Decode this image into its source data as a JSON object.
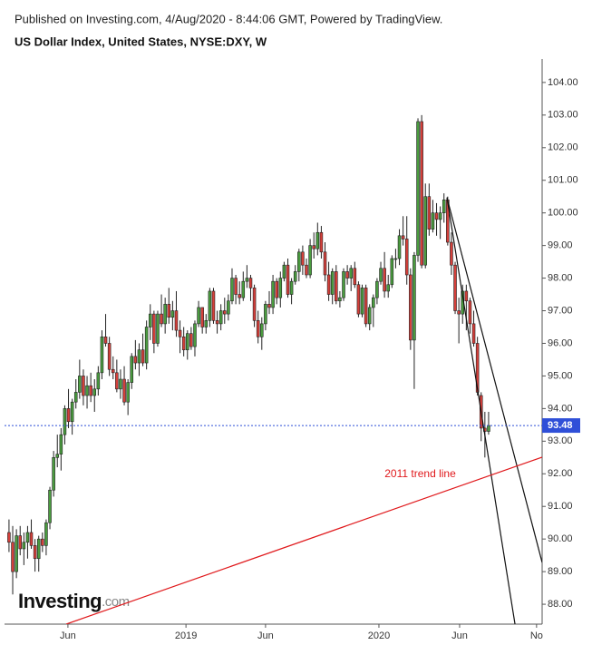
{
  "chart_data": {
    "type": "candlestick",
    "header": "Published on Investing.com, 4/Aug/2020 - 8:44:06 GMT, Powered by TradingView.",
    "title": "US Dollar Index, United States, NYSE:DXY, W",
    "logo": "Investing",
    "logo_suffix": ".com",
    "up_color": "#4a9c3f",
    "down_color": "#d43f3a",
    "ylim": [
      87.39,
      104.72
    ],
    "yticks": [
      {
        "value": 88,
        "label": "88.00"
      },
      {
        "value": 89,
        "label": "89.00"
      },
      {
        "value": 90,
        "label": "90.00"
      },
      {
        "value": 91,
        "label": "91.00"
      },
      {
        "value": 92,
        "label": "92.00"
      },
      {
        "value": 93,
        "label": "93.00"
      },
      {
        "value": 94,
        "label": "94.00"
      },
      {
        "value": 95,
        "label": "95.00"
      },
      {
        "value": 96,
        "label": "96.00"
      },
      {
        "value": 97,
        "label": "97.00"
      },
      {
        "value": 98,
        "label": "98.00"
      },
      {
        "value": 99,
        "label": "99.00"
      },
      {
        "value": 100,
        "label": "100.00"
      },
      {
        "value": 101,
        "label": "101.00"
      },
      {
        "value": 102,
        "label": "102.00"
      },
      {
        "value": 103,
        "label": "103.00"
      },
      {
        "value": 104,
        "label": "104.00"
      }
    ],
    "xlim": [
      -1.2,
      143.4
    ],
    "xticks": [
      {
        "value": 15.85,
        "label": "Jun"
      },
      {
        "value": 47.6,
        "label": "2019"
      },
      {
        "value": 69.0,
        "label": "Jun"
      },
      {
        "value": 99.5,
        "label": "2020"
      },
      {
        "value": 121.2,
        "label": "Jun"
      },
      {
        "value": 141.9,
        "label": "No"
      }
    ],
    "last_price_color": "#2f4fd8",
    "candles": [
      [
        90.2,
        90.6,
        89.6,
        89.9
      ],
      [
        89.9,
        90.4,
        88.3,
        89.0
      ],
      [
        89.0,
        90.3,
        88.8,
        90.1
      ],
      [
        90.1,
        90.4,
        89.5,
        89.7
      ],
      [
        89.7,
        90.2,
        89.2,
        89.9
      ],
      [
        89.9,
        90.4,
        89.4,
        90.2
      ],
      [
        90.2,
        90.6,
        89.7,
        89.8
      ],
      [
        89.8,
        90.0,
        89.0,
        89.4
      ],
      [
        89.4,
        90.1,
        89.0,
        90.0
      ],
      [
        90.0,
        90.2,
        89.6,
        89.8
      ],
      [
        89.8,
        90.6,
        89.5,
        90.5
      ],
      [
        90.5,
        91.6,
        90.3,
        91.5
      ],
      [
        91.5,
        92.7,
        91.3,
        92.5
      ],
      [
        92.5,
        93.2,
        92.2,
        92.6
      ],
      [
        92.6,
        93.4,
        92.1,
        93.2
      ],
      [
        93.2,
        94.1,
        92.9,
        94.0
      ],
      [
        94.0,
        94.6,
        93.4,
        93.6
      ],
      [
        93.6,
        94.3,
        93.2,
        94.2
      ],
      [
        94.2,
        94.9,
        94.0,
        94.5
      ],
      [
        94.5,
        95.5,
        94.3,
        95.0
      ],
      [
        95.0,
        95.2,
        94.1,
        94.4
      ],
      [
        94.4,
        95.0,
        94.0,
        94.7
      ],
      [
        94.7,
        95.1,
        94.2,
        94.4
      ],
      [
        94.4,
        94.9,
        93.9,
        94.6
      ],
      [
        94.6,
        95.3,
        94.4,
        95.1
      ],
      [
        95.1,
        96.4,
        94.9,
        96.2
      ],
      [
        96.2,
        96.9,
        95.9,
        96.0
      ],
      [
        96.0,
        96.2,
        95.0,
        95.2
      ],
      [
        95.2,
        95.6,
        94.9,
        95.1
      ],
      [
        95.1,
        95.5,
        94.5,
        94.6
      ],
      [
        94.6,
        95.2,
        94.3,
        94.9
      ],
      [
        94.9,
        95.3,
        94.1,
        94.2
      ],
      [
        94.2,
        94.9,
        93.8,
        94.8
      ],
      [
        94.8,
        95.7,
        94.6,
        95.6
      ],
      [
        95.6,
        96.1,
        95.2,
        95.4
      ],
      [
        95.4,
        96.0,
        95.0,
        95.8
      ],
      [
        95.8,
        96.3,
        95.3,
        95.4
      ],
      [
        95.4,
        96.7,
        95.2,
        96.5
      ],
      [
        96.5,
        97.2,
        96.1,
        96.9
      ],
      [
        96.9,
        97.0,
        95.7,
        96.0
      ],
      [
        96.0,
        97.0,
        95.9,
        96.9
      ],
      [
        96.9,
        97.5,
        96.5,
        96.6
      ],
      [
        96.6,
        97.4,
        96.3,
        97.2
      ],
      [
        97.2,
        97.7,
        96.6,
        96.8
      ],
      [
        96.8,
        97.3,
        96.4,
        97.0
      ],
      [
        97.0,
        97.6,
        96.2,
        96.4
      ],
      [
        96.4,
        96.7,
        95.7,
        96.2
      ],
      [
        96.2,
        96.5,
        95.6,
        95.8
      ],
      [
        95.8,
        96.4,
        95.5,
        96.3
      ],
      [
        96.3,
        96.5,
        95.8,
        95.9
      ],
      [
        95.9,
        96.7,
        95.6,
        96.6
      ],
      [
        96.6,
        97.3,
        96.5,
        97.1
      ],
      [
        97.1,
        97.1,
        96.3,
        96.5
      ],
      [
        96.5,
        96.9,
        96.3,
        96.7
      ],
      [
        96.7,
        97.7,
        96.5,
        97.6
      ],
      [
        97.6,
        97.7,
        96.6,
        96.7
      ],
      [
        96.7,
        97.0,
        96.3,
        96.6
      ],
      [
        96.6,
        97.2,
        96.4,
        97.0
      ],
      [
        97.0,
        97.4,
        96.6,
        96.9
      ],
      [
        96.9,
        97.5,
        96.7,
        97.3
      ],
      [
        97.3,
        98.3,
        97.2,
        98.0
      ],
      [
        98.0,
        98.1,
        97.2,
        97.5
      ],
      [
        97.5,
        97.9,
        97.2,
        97.4
      ],
      [
        97.4,
        98.2,
        97.3,
        97.9
      ],
      [
        97.9,
        98.4,
        97.7,
        98.0
      ],
      [
        98.0,
        98.1,
        97.3,
        97.7
      ],
      [
        97.7,
        97.8,
        96.5,
        96.7
      ],
      [
        96.7,
        97.0,
        96.0,
        96.2
      ],
      [
        96.2,
        96.8,
        95.8,
        96.6
      ],
      [
        96.6,
        97.3,
        96.4,
        97.2
      ],
      [
        97.2,
        97.6,
        96.9,
        97.1
      ],
      [
        97.1,
        98.1,
        96.9,
        97.9
      ],
      [
        97.9,
        98.0,
        97.2,
        97.4
      ],
      [
        97.4,
        98.2,
        97.1,
        98.0
      ],
      [
        98.0,
        98.5,
        97.9,
        98.4
      ],
      [
        98.4,
        98.6,
        97.4,
        97.5
      ],
      [
        97.5,
        98.0,
        97.2,
        97.9
      ],
      [
        97.9,
        98.4,
        97.8,
        98.2
      ],
      [
        98.2,
        98.9,
        97.9,
        98.8
      ],
      [
        98.8,
        99.0,
        98.1,
        98.4
      ],
      [
        98.4,
        98.6,
        98.0,
        98.1
      ],
      [
        98.1,
        99.2,
        98.0,
        99.0
      ],
      [
        99.0,
        99.4,
        98.6,
        98.9
      ],
      [
        98.9,
        99.7,
        98.7,
        99.4
      ],
      [
        99.4,
        99.6,
        98.6,
        98.8
      ],
      [
        98.8,
        99.1,
        97.9,
        98.1
      ],
      [
        98.1,
        98.5,
        97.3,
        97.5
      ],
      [
        97.5,
        98.3,
        97.2,
        98.2
      ],
      [
        98.2,
        98.4,
        97.2,
        97.3
      ],
      [
        97.3,
        97.6,
        97.1,
        97.4
      ],
      [
        97.4,
        98.3,
        97.3,
        98.2
      ],
      [
        98.2,
        98.4,
        97.8,
        98.0
      ],
      [
        98.0,
        98.4,
        97.6,
        98.3
      ],
      [
        98.3,
        98.5,
        97.7,
        97.8
      ],
      [
        97.8,
        97.9,
        96.8,
        96.9
      ],
      [
        96.9,
        97.8,
        96.8,
        97.7
      ],
      [
        97.7,
        97.8,
        96.5,
        96.6
      ],
      [
        96.6,
        97.2,
        96.4,
        97.1
      ],
      [
        97.1,
        97.5,
        96.5,
        97.4
      ],
      [
        97.4,
        98.0,
        97.2,
        97.9
      ],
      [
        97.9,
        98.5,
        97.8,
        98.3
      ],
      [
        98.3,
        98.8,
        97.4,
        97.6
      ],
      [
        97.6,
        98.1,
        97.4,
        97.8
      ],
      [
        97.8,
        98.7,
        97.7,
        98.6
      ],
      [
        98.6,
        98.9,
        98.3,
        98.6
      ],
      [
        98.6,
        99.5,
        98.4,
        99.3
      ],
      [
        99.3,
        99.9,
        99.0,
        99.2
      ],
      [
        99.2,
        99.9,
        97.8,
        98.1
      ],
      [
        98.1,
        98.3,
        95.8,
        96.1
      ],
      [
        96.1,
        98.8,
        94.6,
        98.7
      ],
      [
        98.7,
        102.9,
        98.5,
        102.8
      ],
      [
        102.8,
        103.0,
        98.3,
        98.4
      ],
      [
        98.4,
        100.9,
        98.3,
        100.5
      ],
      [
        100.5,
        100.9,
        99.3,
        99.5
      ],
      [
        99.5,
        100.4,
        99.4,
        100.0
      ],
      [
        100.0,
        100.3,
        99.3,
        99.8
      ],
      [
        99.8,
        100.2,
        99.2,
        100.0
      ],
      [
        100.0,
        100.6,
        99.7,
        100.4
      ],
      [
        100.4,
        100.5,
        99.0,
        99.1
      ],
      [
        99.1,
        99.4,
        98.1,
        98.4
      ],
      [
        98.4,
        98.5,
        96.9,
        97.0
      ],
      [
        97.0,
        97.4,
        96.0,
        96.9
      ],
      [
        96.9,
        97.8,
        96.6,
        97.6
      ],
      [
        97.6,
        97.8,
        96.4,
        97.3
      ],
      [
        97.3,
        97.4,
        96.3,
        96.6
      ],
      [
        96.6,
        97.0,
        95.9,
        96.0
      ],
      [
        96.0,
        96.2,
        94.4,
        94.5
      ],
      [
        94.4,
        94.5,
        93.0,
        93.4
      ],
      [
        93.4,
        93.9,
        92.5,
        93.3
      ],
      [
        93.3,
        93.9,
        93.2,
        93.48
      ]
    ],
    "trend_lines": [
      {
        "color": "#111111",
        "points": [
          [
            117.8,
            100.47
          ],
          [
            136.1,
            87.39
          ]
        ]
      },
      {
        "color": "#111111",
        "points": [
          [
            117.8,
            100.47
          ],
          [
            143.4,
            89.28
          ]
        ]
      },
      {
        "color": "#e0191c",
        "points": [
          [
            15.4,
            87.39
          ],
          [
            143.4,
            92.51
          ]
        ],
        "label": "2011 trend line"
      }
    ]
  }
}
